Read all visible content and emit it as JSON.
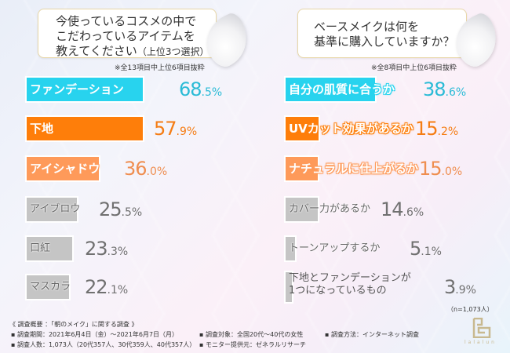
{
  "left": {
    "question_lines": [
      "今使っているコスメの中で",
      "こだわっているアイテムを",
      "教えてください"
    ],
    "question_suffix": "（上位3つ選択）",
    "note": "※全13項目中上位6項目抜粋",
    "items": [
      {
        "label": "ファンデーション",
        "int": "68",
        "dec": ".5%",
        "color": "#28d3ee",
        "text_color": "#2bbbd6",
        "width": 152
      },
      {
        "label": "下地",
        "int": "57",
        "dec": ".9%",
        "color": "#fe7e0a",
        "text_color": "#f57d14",
        "width": 152
      },
      {
        "label": "アイシャドウ",
        "int": "36",
        "dec": ".0%",
        "color": "#fe9a5a",
        "text_color": "#ef8e50",
        "width": 96
      },
      {
        "label": "アイブロウ",
        "int": "25",
        "dec": ".5%",
        "color": "#c5c5c5",
        "text_color": "#707070",
        "width": 68
      },
      {
        "label": "口紅",
        "int": "23",
        "dec": ".3%",
        "color": "#c5c5c5",
        "text_color": "#707070",
        "width": 62
      },
      {
        "label": "マスカラ",
        "int": "22",
        "dec": ".1%",
        "color": "#c5c5c5",
        "text_color": "#707070",
        "width": 58
      }
    ]
  },
  "right": {
    "question_lines": [
      "ベースメイクは何を",
      "基準に購入していますか？"
    ],
    "note": "※全8項目中上位6項目抜粋",
    "items": [
      {
        "label": "自分の肌質に合うか",
        "int": "38",
        "dec": ".6%",
        "color": "#28d3ee",
        "text_color": "#2bbbd6",
        "width": 118
      },
      {
        "label": "UVカット効果があるか",
        "int": "15",
        "dec": ".2%",
        "color": "#fe7e0a",
        "text_color": "#f57d14",
        "width": 46
      },
      {
        "label": "ナチュラルに仕上がるか",
        "int": "15",
        "dec": ".0%",
        "color": "#fe9a5a",
        "text_color": "#ef8e50",
        "width": 45
      },
      {
        "label": "カバー力があるか",
        "int": "14",
        "dec": ".6%",
        "color": "#c5c5c5",
        "text_color": "#707070",
        "width": 45
      },
      {
        "label": "トーンアップするか",
        "int": "5",
        "dec": ".1%",
        "color": "#c5c5c5",
        "text_color": "#707070",
        "width": 16
      },
      {
        "label_lines": [
          "下地とファンデーションが",
          "1つになっているもの"
        ],
        "int": "3",
        "dec": ".9%",
        "color": "#c5c5c5",
        "text_color": "#707070",
        "width": 12
      }
    ],
    "sample": "（n=1,073人）"
  },
  "footer": {
    "title": "《 調査概要 ：「朝のメイク」に関する調査 》",
    "period": "▪ 調査期間：2021年6月4日（金）～2021年6月7日（月）",
    "target": "▪ 調査対象：全国20代～40代の女性",
    "method": "▪ 調査方法：インターネット調査",
    "count": "▪ 調査人数：1,073人（20代357人、30代359人、40代357人）",
    "provider": "▪ モニター提供元：ゼネラルリサーチ"
  },
  "logo": {
    "text": "lalalun",
    "icon": "lalalun-logo-icon",
    "color": "#c8b98f"
  },
  "chart_data": [
    {
      "type": "bar",
      "orientation": "horizontal",
      "title": "今使っているコスメの中でこだわっているアイテムを教えてください（上位3つ選択）",
      "subtitle": "※全13項目中上位6項目抜粋",
      "categories": [
        "ファンデーション",
        "下地",
        "アイシャドウ",
        "アイブロウ",
        "口紅",
        "マスカラ"
      ],
      "values": [
        68.5,
        57.9,
        36.0,
        25.5,
        23.3,
        22.1
      ],
      "unit": "%",
      "xlabel": "",
      "ylabel": "",
      "grid": false
    },
    {
      "type": "bar",
      "orientation": "horizontal",
      "title": "ベースメイクは何を基準に購入していますか？",
      "subtitle": "※全8項目中上位6項目抜粋",
      "categories": [
        "自分の肌質に合うか",
        "UVカット効果があるか",
        "ナチュラルに仕上がるか",
        "カバー力があるか",
        "トーンアップするか",
        "下地とファンデーションが1つになっているもの"
      ],
      "values": [
        38.6,
        15.2,
        15.0,
        14.6,
        5.1,
        3.9
      ],
      "unit": "%",
      "annotation": "（n=1,073人）",
      "xlabel": "",
      "ylabel": "",
      "grid": false
    }
  ]
}
